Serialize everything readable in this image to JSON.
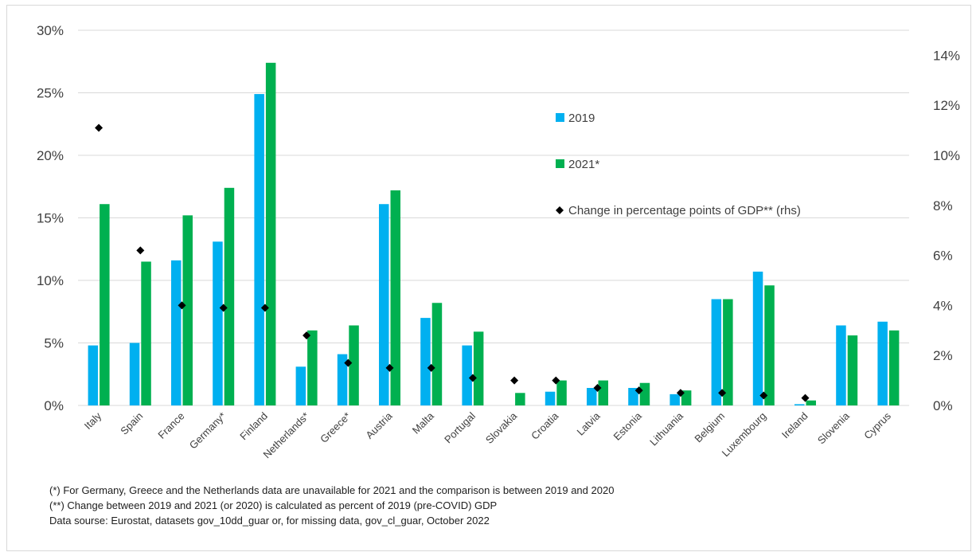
{
  "chart_data": {
    "type": "bar",
    "categories": [
      "Italy",
      "Spain",
      "France",
      "Germany*",
      "Finland",
      "Netherlands*",
      "Greece*",
      "Austria",
      "Malta",
      "Portugal",
      "Slovakia",
      "Croatia",
      "Latvia",
      "Estonia",
      "Lithuania",
      "Belgium",
      "Luxembourg",
      "Ireland",
      "Slovenia",
      "Cyprus"
    ],
    "series": [
      {
        "name": "2019",
        "type": "bar",
        "axis": "left",
        "color": "#00b0f0",
        "values": [
          4.8,
          5.0,
          11.6,
          13.1,
          24.9,
          3.1,
          4.1,
          16.1,
          7.0,
          4.8,
          0.0,
          1.1,
          1.4,
          1.4,
          0.9,
          8.5,
          10.7,
          0.1,
          6.4,
          6.7
        ]
      },
      {
        "name": "2021*",
        "type": "bar",
        "axis": "left",
        "color": "#00b050",
        "values": [
          16.1,
          11.5,
          15.2,
          17.4,
          27.4,
          6.0,
          6.4,
          17.2,
          8.2,
          5.9,
          1.0,
          2.0,
          2.0,
          1.8,
          1.2,
          8.5,
          9.6,
          0.4,
          5.6,
          6.0
        ]
      },
      {
        "name": "Change in percentage points of GDP** (rhs)",
        "type": "scatter",
        "axis": "right",
        "color": "#000000",
        "values": [
          11.1,
          6.2,
          4.0,
          3.9,
          3.9,
          2.8,
          1.7,
          1.5,
          1.5,
          1.1,
          1.0,
          1.0,
          0.7,
          0.6,
          0.5,
          0.5,
          0.4,
          0.3,
          null,
          null
        ]
      }
    ],
    "y_left": {
      "min": 0,
      "max": 30,
      "ticks": [
        "0%",
        "5%",
        "10%",
        "15%",
        "20%",
        "25%",
        "30%"
      ]
    },
    "y_right": {
      "min": 0,
      "max": 15,
      "ticks": [
        "0%",
        "2%",
        "4%",
        "6%",
        "8%",
        "10%",
        "12%",
        "14%"
      ]
    },
    "grid": true,
    "legend_position": "top-right-inside",
    "legend": [
      "2019",
      "2021*",
      "Change in percentage points of GDP** (rhs)"
    ]
  },
  "notes": [
    "(*) For Germany, Greece and the Netherlands data are unavailable for 2021 and the comparison is between 2019 and 2020",
    "(**) Change between 2019 and 2021 (or 2020) is calculated as percent of 2019 (pre-COVID) GDP",
    "Data sourse: Eurostat, datasets gov_10dd_guar or, for missing data, gov_cl_guar, October 2022"
  ]
}
